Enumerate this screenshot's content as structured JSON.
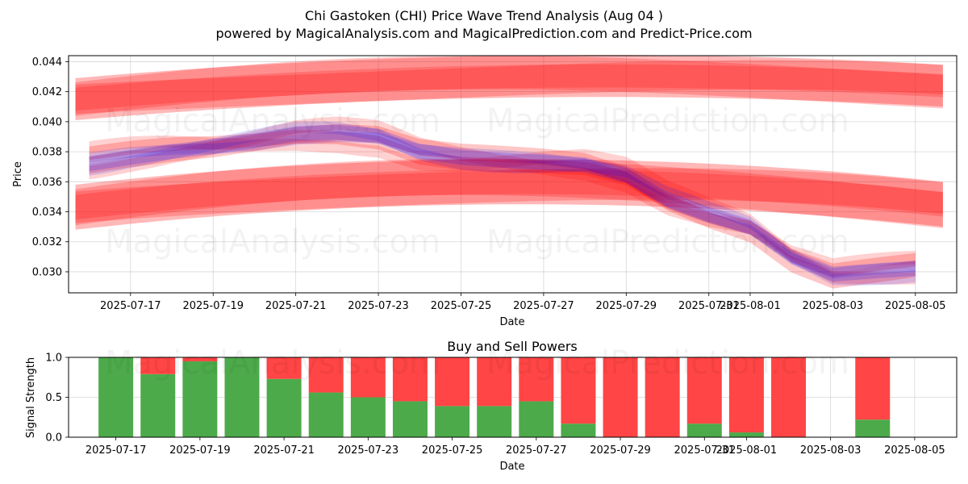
{
  "header": {
    "title": "Chi Gastoken (CHI) Price Wave Trend Analysis (Aug 04 )",
    "subtitle": "powered by MagicalAnalysis.com and MagicalPrediction.com and Predict-Price.com"
  },
  "watermarks": [
    "MagicalAnalysis.com",
    "MagicalPrediction.com"
  ],
  "colors": {
    "red_band": "#ff0000",
    "blue_band": "#0000ff",
    "buy_bar": "#4caa4a",
    "sell_bar": "#ff4545"
  },
  "chart_data": [
    {
      "type": "area",
      "title": "",
      "xlabel": "Date",
      "ylabel": "Price",
      "x_ticks": [
        "2025-07-17",
        "2025-07-19",
        "2025-07-21",
        "2025-07-23",
        "2025-07-25",
        "2025-07-27",
        "2025-07-29",
        "2025-07-31",
        "2025-08-01",
        "2025-08-03",
        "2025-08-05"
      ],
      "y_ticks": [
        "0.030",
        "0.032",
        "0.034",
        "0.036",
        "0.038",
        "0.040",
        "0.042",
        "0.044"
      ],
      "xlim": [
        "2025-07-15T12:00",
        "2025-08-06T00:00"
      ],
      "ylim": [
        0.0286,
        0.0444
      ],
      "grid": true,
      "price_path": {
        "dates": [
          "2025-07-16",
          "2025-07-17",
          "2025-07-18",
          "2025-07-19",
          "2025-07-20",
          "2025-07-21",
          "2025-07-22",
          "2025-07-23",
          "2025-07-24",
          "2025-07-25",
          "2025-07-26",
          "2025-07-27",
          "2025-07-28",
          "2025-07-29",
          "2025-07-30",
          "2025-07-31",
          "2025-08-01",
          "2025-08-02",
          "2025-08-03",
          "2025-08-04",
          "2025-08-05"
        ],
        "values": [
          0.0374,
          0.0378,
          0.0381,
          0.0383,
          0.0386,
          0.039,
          0.0391,
          0.0389,
          0.038,
          0.0377,
          0.0376,
          0.0375,
          0.0373,
          0.0365,
          0.0348,
          0.0337,
          0.0328,
          0.0308,
          0.0297,
          0.03,
          0.0303
        ]
      },
      "long_bands": [
        {
          "name": "upper",
          "start": "2025-07-15T16:00",
          "end": "2025-08-05T16:00",
          "mid_start": 0.0415,
          "mid_peak": 0.043,
          "mid_end": 0.0424,
          "width": 0.0028
        },
        {
          "name": "lower",
          "start": "2025-07-15T16:00",
          "end": "2025-08-05T16:00",
          "mid_start": 0.0343,
          "mid_peak": 0.036,
          "mid_end": 0.0345,
          "width": 0.003
        }
      ]
    },
    {
      "type": "bar",
      "title": "Buy and Sell Powers",
      "xlabel": "Date",
      "ylabel": "Signal Strength",
      "x_ticks": [
        "2025-07-17",
        "2025-07-19",
        "2025-07-21",
        "2025-07-23",
        "2025-07-25",
        "2025-07-27",
        "2025-07-29",
        "2025-07-31",
        "2025-08-01",
        "2025-08-03",
        "2025-08-05"
      ],
      "y_ticks": [
        "0.0",
        "0.5",
        "1.0"
      ],
      "ylim": [
        0,
        1
      ],
      "categories": [
        "2025-07-17",
        "2025-07-18",
        "2025-07-19",
        "2025-07-20",
        "2025-07-21",
        "2025-07-22",
        "2025-07-23",
        "2025-07-24",
        "2025-07-25",
        "2025-07-26",
        "2025-07-27",
        "2025-07-28",
        "2025-07-29",
        "2025-07-30",
        "2025-07-31",
        "2025-08-01",
        "2025-08-02",
        "2025-08-04"
      ],
      "series": [
        {
          "name": "Buy",
          "values": [
            1.0,
            0.79,
            0.95,
            1.0,
            0.73,
            0.56,
            0.5,
            0.45,
            0.39,
            0.39,
            0.45,
            0.17,
            0.0,
            0.0,
            0.17,
            0.06,
            0.0,
            0.22
          ]
        },
        {
          "name": "Sell",
          "values": [
            0.0,
            0.21,
            0.05,
            0.0,
            0.27,
            0.44,
            0.5,
            0.55,
            0.61,
            0.61,
            0.55,
            0.83,
            1.0,
            1.0,
            0.83,
            0.94,
            1.0,
            0.78
          ]
        }
      ]
    }
  ]
}
